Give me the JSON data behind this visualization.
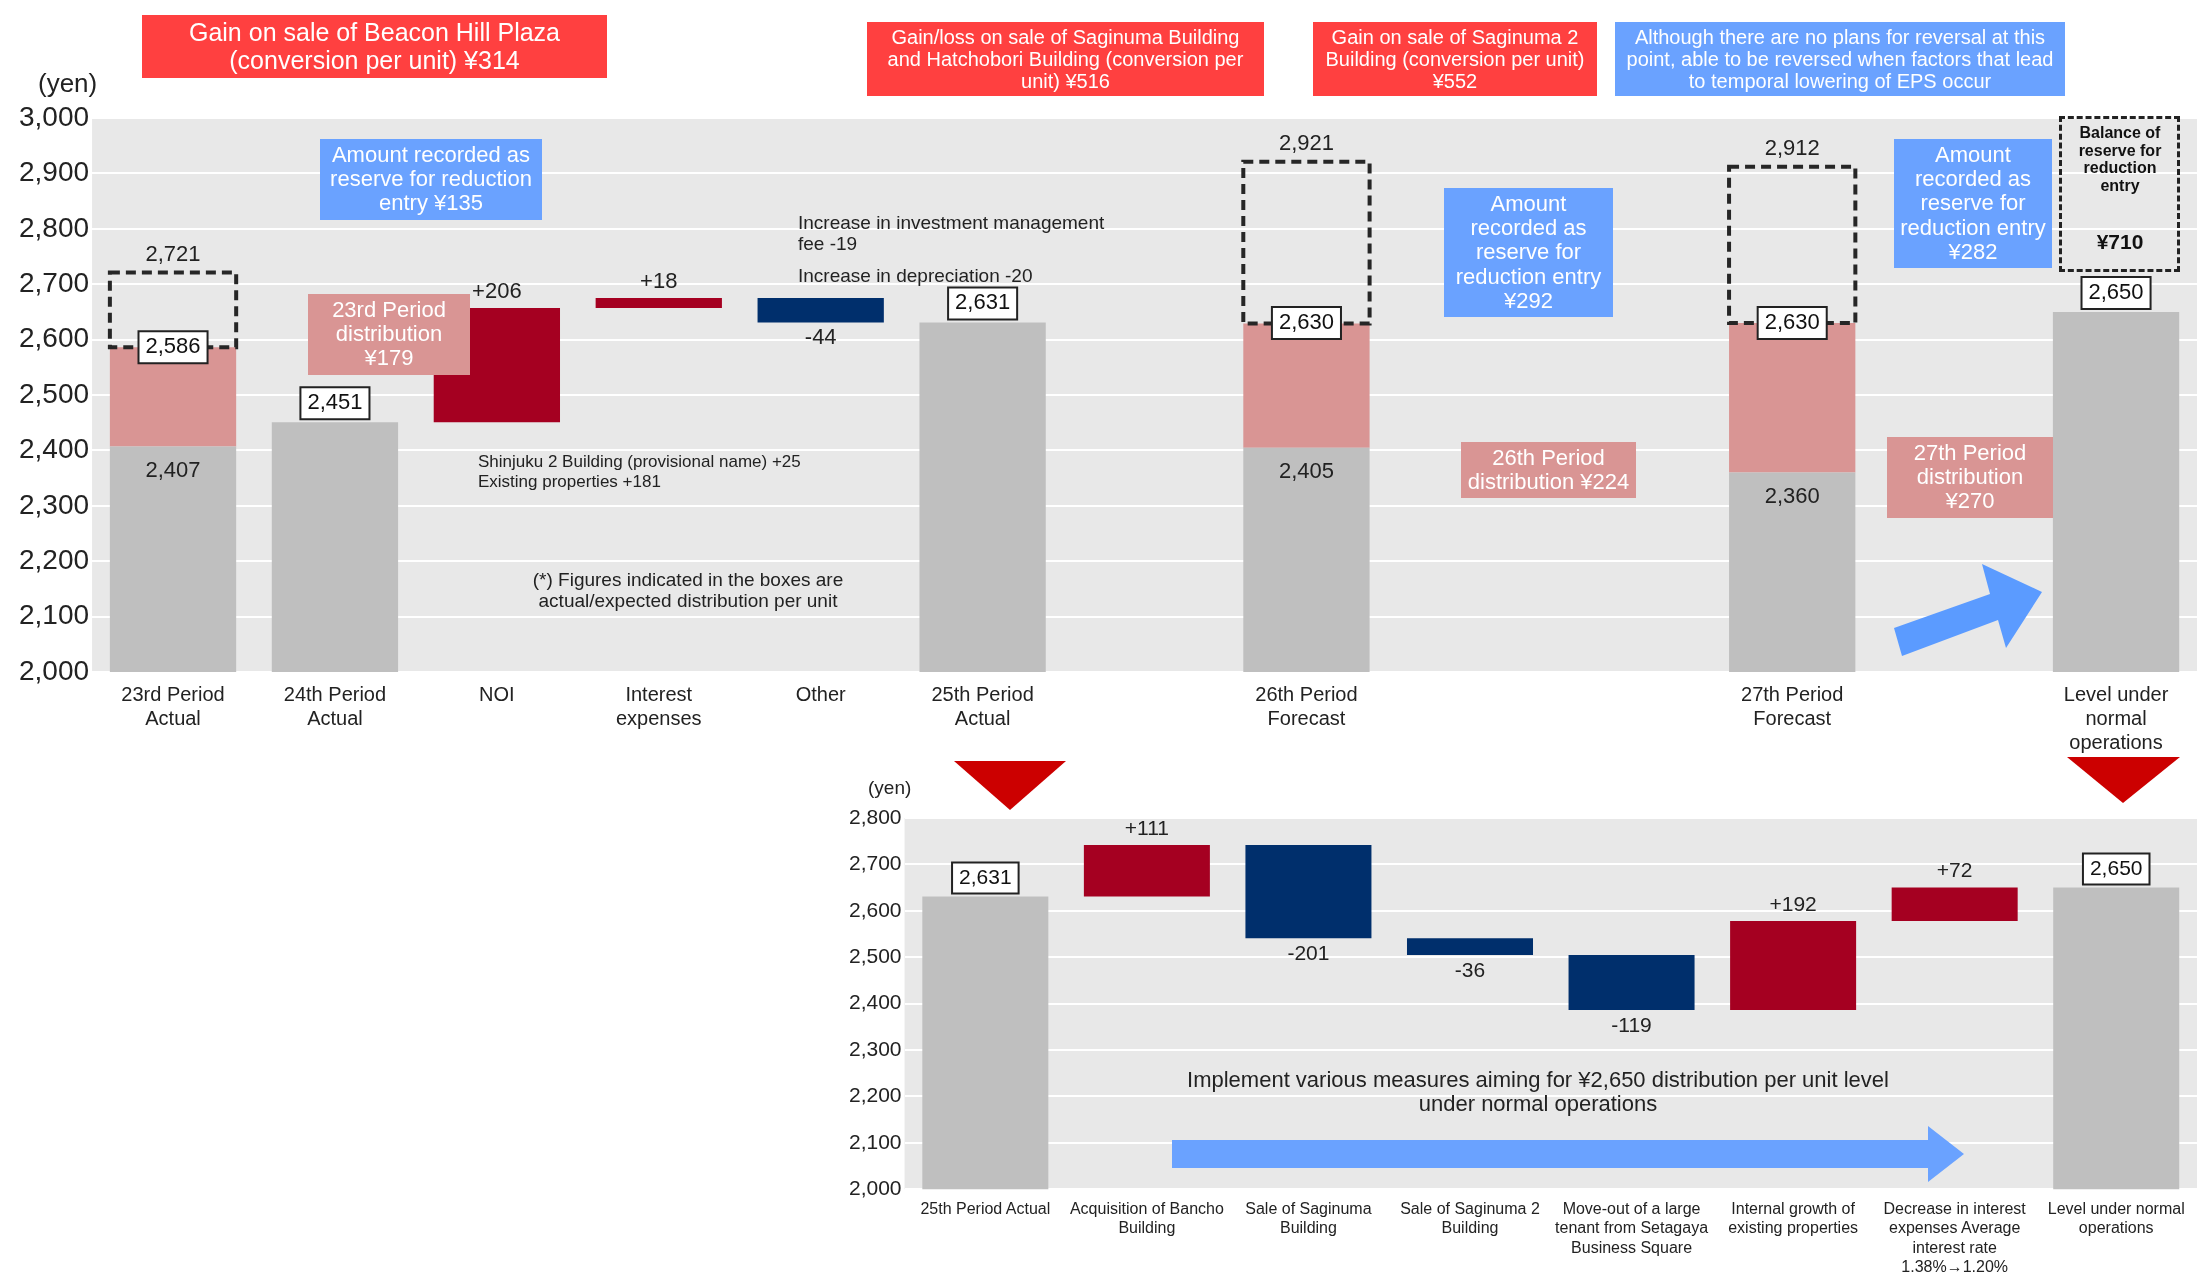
{
  "chart_data": [
    {
      "type": "bar",
      "ylabel": "(yen)",
      "categories": [
        "23rd Period Actual",
        "24th Period Actual",
        "NOI",
        "Interest expenses",
        "Other",
        "25th Period Actual",
        null,
        "26th Period Forecast",
        null,
        null,
        "27th Period Forecast",
        null,
        "Level under normal operations"
      ],
      "series": [
        {
          "color": "#bfbfbf",
          "values": [
            2407,
            2451,
            null,
            null,
            null,
            2631,
            null,
            2405,
            null,
            null,
            2360,
            null,
            2650
          ],
          "value_labels": [
            "2,407",
            "2,451",
            null,
            null,
            null,
            "2,631",
            null,
            "2,405",
            null,
            null,
            "2,360",
            null,
            "2,650"
          ]
        },
        {
          "color": "#d99594",
          "values": [
            179,
            null,
            null,
            null,
            null,
            null,
            null,
            224,
            null,
            null,
            270,
            null,
            null
          ],
          "base": [
            2407,
            null,
            null,
            null,
            null,
            null,
            null,
            2405,
            null,
            null,
            2360,
            null,
            null
          ]
        },
        {
          "color": "#262626",
          "line_style": "dashed",
          "values": [
            135,
            null,
            null,
            null,
            null,
            null,
            null,
            292,
            null,
            null,
            282,
            null,
            null
          ],
          "base": [
            2586,
            null,
            null,
            null,
            null,
            null,
            null,
            2629,
            null,
            null,
            2630,
            null,
            null
          ]
        },
        {
          "color": "#a50021",
          "values": [
            null,
            null,
            206,
            18,
            null,
            null,
            null,
            null,
            null,
            null,
            null,
            null,
            null
          ],
          "base": [
            null,
            null,
            2451,
            2657,
            null,
            null,
            null,
            null,
            null,
            null,
            null,
            null,
            null
          ],
          "value_labels": [
            null,
            null,
            "+206",
            "+18",
            null,
            null,
            null,
            null,
            null,
            null,
            null,
            null,
            null
          ]
        },
        {
          "color": "#002f6c",
          "values": [
            null,
            null,
            null,
            null,
            -44,
            null,
            null,
            null,
            null,
            null,
            null,
            null,
            null
          ],
          "base": [
            null,
            null,
            null,
            null,
            2675,
            null,
            null,
            null,
            null,
            null,
            null,
            null,
            null
          ],
          "value_labels": [
            null,
            null,
            null,
            null,
            "-44",
            null,
            null,
            null,
            null,
            null,
            null,
            null,
            null
          ]
        }
      ],
      "ylim": [
        2000,
        3000
      ],
      "yticks": [
        {
          "value": 2000,
          "label": "2,000"
        },
        {
          "value": 2100,
          "label": "2,100"
        },
        {
          "value": 2200,
          "label": "2,200"
        },
        {
          "value": 2300,
          "label": "2,300"
        },
        {
          "value": 2400,
          "label": "2,400"
        },
        {
          "value": 2500,
          "label": "2,500"
        },
        {
          "value": 2600,
          "label": "2,600"
        },
        {
          "value": 2700,
          "label": "2,700"
        },
        {
          "value": 2800,
          "label": "2,800"
        },
        {
          "value": 2900,
          "label": "2,900"
        },
        {
          "value": 3000,
          "label": "3,000"
        }
      ],
      "grid": "y",
      "legend": false,
      "annotations": [
        "Gain on sale of Beacon Hill Plaza (conversion per unit) ¥314",
        "Amount recorded as reserve for reduction entry ¥135",
        "23rd Period distribution ¥179",
        "Increase in investment management fee -19",
        "Increase in depreciation -20",
        "Shinjuku 2 Building (provisional name) +25",
        "Existing properties +181",
        "(*) Figures indicated in the boxes are actual/expected distribution per unit",
        "Gain/loss on sale of Saginuma Building and Hatchobori Building (conversion per unit) ¥516",
        "Gain on sale of Saginuma 2 Building (conversion per unit) ¥552",
        "Although there are no plans for reversal at this point, able to be reversed when factors that lead to temporal lowering of EPS occur",
        "Amount recorded as reserve for reduction entry ¥292",
        "26th Period distribution ¥224",
        "Amount recorded as reserve for reduction entry ¥282",
        "27th Period distribution ¥270",
        "Balance of reserve for reduction entry",
        "¥710",
        {
          "text": "2,586",
          "x": "23rd Period Actual",
          "y": 2586
        },
        {
          "text": "2,721",
          "x": "23rd Period Actual",
          "y": 2721
        },
        {
          "text": "2,630",
          "x": "26th Period Forecast",
          "y": 2630
        },
        {
          "text": "2,921",
          "x": "26th Period Forecast",
          "y": 2921
        },
        {
          "text": "2,630",
          "x": "27th Period Forecast",
          "y": 2630
        },
        {
          "text": "2,912",
          "x": "27th Period Forecast",
          "y": 2912
        }
      ]
    },
    {
      "type": "bar",
      "ylabel": "(yen)",
      "categories": [
        "25th Period Actual",
        "Acquisition of Bancho Building",
        "Sale of Saginuma Building",
        "Sale of Saginuma 2 Building",
        "Move-out of a large tenant from Setagaya Business Square",
        "Internal growth of existing properties",
        "Decrease in interest expenses Average interest rate 1.38%→1.20%",
        "Level under normal operations"
      ],
      "series": [
        {
          "color": "#bfbfbf",
          "values": [
            2631,
            null,
            null,
            null,
            null,
            null,
            null,
            2650
          ],
          "value_labels": [
            "2,631",
            null,
            null,
            null,
            null,
            null,
            null,
            "2,650"
          ]
        },
        {
          "color": "#a50021",
          "values": [
            null,
            111,
            null,
            null,
            null,
            192,
            72,
            null
          ],
          "base": [
            null,
            2631,
            null,
            null,
            null,
            2386,
            2578,
            null
          ],
          "value_labels": [
            null,
            "+111",
            null,
            null,
            null,
            "+192",
            "+72",
            null
          ]
        },
        {
          "color": "#002f6c",
          "values": [
            null,
            null,
            -201,
            -36,
            -119,
            null,
            null,
            null
          ],
          "base": [
            null,
            null,
            2742,
            2541,
            2505,
            null,
            null,
            null
          ],
          "value_labels": [
            null,
            null,
            "-201",
            "-36",
            "-119",
            null,
            null,
            null
          ]
        }
      ],
      "ylim": [
        2000,
        2800
      ],
      "yticks": [
        {
          "value": 2000,
          "label": "2,000"
        },
        {
          "value": 2100,
          "label": "2,100"
        },
        {
          "value": 2200,
          "label": "2,200"
        },
        {
          "value": 2300,
          "label": "2,300"
        },
        {
          "value": 2400,
          "label": "2,400"
        },
        {
          "value": 2500,
          "label": "2,500"
        },
        {
          "value": 2600,
          "label": "2,600"
        },
        {
          "value": 2700,
          "label": "2,700"
        },
        {
          "value": 2800,
          "label": "2,800"
        }
      ],
      "grid": "y",
      "legend": false,
      "annotations": [
        "Implement various measures aiming for ¥2,650 distribution per unit level under normal operations"
      ]
    }
  ]
}
